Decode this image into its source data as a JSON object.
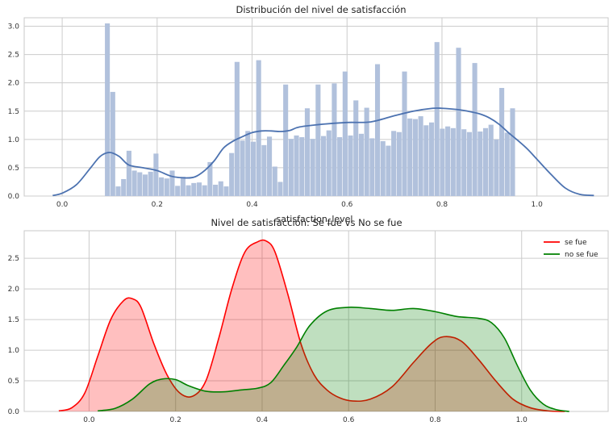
{
  "chart_data": [
    {
      "type": "bar",
      "subtype": "histogram with density curve",
      "title": "Distribución del nivel de satisfacción",
      "xlabel": "satisfaction_level",
      "ylabel": "",
      "xlim": [
        -0.08,
        1.15
      ],
      "ylim": [
        0,
        3.15
      ],
      "xticks": [
        0.0,
        0.2,
        0.4,
        0.6,
        0.8,
        1.0
      ],
      "xtick_labels": [
        "0.0",
        "0.2",
        "0.4",
        "0.6",
        "0.8",
        "1.0"
      ],
      "yticks": [
        0.0,
        0.5,
        1.0,
        1.5,
        2.0,
        2.5,
        3.0
      ],
      "ytick_labels": [
        "0.0",
        "0.5",
        "1.0",
        "1.5",
        "2.0",
        "2.5",
        "3.0"
      ],
      "grid": true,
      "bar_color": "#b1c1dc",
      "line_color": "#4c72b0",
      "bin_start": 0.09,
      "bin_width": 0.01138,
      "values": [
        3.05,
        1.84,
        0.17,
        0.3,
        0.8,
        0.45,
        0.42,
        0.38,
        0.43,
        0.75,
        0.33,
        0.31,
        0.45,
        0.18,
        0.34,
        0.19,
        0.23,
        0.24,
        0.19,
        0.6,
        0.2,
        0.26,
        0.17,
        0.76,
        2.37,
        0.98,
        1.15,
        0.96,
        2.4,
        0.9,
        1.05,
        0.52,
        0.25,
        1.97,
        1.01,
        1.07,
        1.04,
        1.55,
        1.01,
        1.97,
        1.06,
        1.16,
        1.99,
        1.04,
        2.2,
        1.07,
        1.69,
        1.1,
        1.56,
        1.02,
        2.33,
        0.97,
        0.89,
        1.15,
        1.13,
        2.2,
        1.37,
        1.36,
        1.41,
        1.25,
        1.3,
        2.72,
        1.19,
        1.23,
        1.2,
        2.62,
        1.18,
        1.13,
        2.35,
        1.14,
        1.2,
        1.26,
        1.0,
        1.91,
        1.12,
        1.55
      ],
      "density": {
        "x": [
          -0.02,
          0.0,
          0.03,
          0.06,
          0.08,
          0.1,
          0.12,
          0.14,
          0.17,
          0.2,
          0.23,
          0.26,
          0.28,
          0.3,
          0.32,
          0.34,
          0.36,
          0.38,
          0.4,
          0.42,
          0.44,
          0.46,
          0.48,
          0.5,
          0.55,
          0.6,
          0.65,
          0.7,
          0.74,
          0.78,
          0.8,
          0.83,
          0.86,
          0.88,
          0.9,
          0.92,
          0.94,
          0.96,
          0.98,
          1.0,
          1.03,
          1.06,
          1.09,
          1.12
        ],
        "y": [
          0.01,
          0.05,
          0.2,
          0.5,
          0.7,
          0.77,
          0.7,
          0.55,
          0.5,
          0.45,
          0.35,
          0.32,
          0.34,
          0.45,
          0.62,
          0.85,
          0.97,
          1.05,
          1.12,
          1.15,
          1.15,
          1.14,
          1.16,
          1.22,
          1.27,
          1.3,
          1.31,
          1.42,
          1.5,
          1.55,
          1.55,
          1.53,
          1.49,
          1.45,
          1.38,
          1.27,
          1.12,
          0.98,
          0.83,
          0.65,
          0.38,
          0.14,
          0.03,
          0.01
        ]
      }
    },
    {
      "type": "area",
      "subtype": "kde",
      "title": "Nivel de satisfacción: Se fue vs No se fue",
      "xlabel": "",
      "ylabel": "",
      "xlim": [
        -0.15,
        1.2
      ],
      "ylim": [
        0,
        2.95
      ],
      "xticks": [
        0.0,
        0.2,
        0.4,
        0.6,
        0.8,
        1.0
      ],
      "xtick_labels": [
        "0.0",
        "0.2",
        "0.4",
        "0.6",
        "0.8",
        "1.0"
      ],
      "yticks": [
        0.0,
        0.5,
        1.0,
        1.5,
        2.0,
        2.5
      ],
      "ytick_labels": [
        "0.0",
        "0.5",
        "1.0",
        "1.5",
        "2.0",
        "2.5"
      ],
      "grid": true,
      "legend_position": "top-right",
      "series": [
        {
          "name": "se fue",
          "color": "#ff0000",
          "fill": "#ff0000",
          "x": [
            -0.07,
            -0.04,
            -0.01,
            0.02,
            0.05,
            0.08,
            0.1,
            0.12,
            0.15,
            0.18,
            0.21,
            0.24,
            0.27,
            0.3,
            0.33,
            0.36,
            0.39,
            0.41,
            0.43,
            0.46,
            0.49,
            0.52,
            0.55,
            0.58,
            0.61,
            0.65,
            0.7,
            0.75,
            0.79,
            0.82,
            0.86,
            0.9,
            0.94,
            0.98,
            1.02,
            1.06,
            1.1
          ],
          "y": [
            0.01,
            0.06,
            0.3,
            0.9,
            1.5,
            1.81,
            1.84,
            1.7,
            1.1,
            0.6,
            0.3,
            0.25,
            0.5,
            1.2,
            2.0,
            2.6,
            2.77,
            2.78,
            2.6,
            1.9,
            1.1,
            0.6,
            0.35,
            0.22,
            0.17,
            0.2,
            0.4,
            0.8,
            1.1,
            1.22,
            1.15,
            0.85,
            0.5,
            0.2,
            0.06,
            0.01,
            0.0
          ]
        },
        {
          "name": "no se fue",
          "color": "#008000",
          "fill": "#008000",
          "x": [
            0.02,
            0.06,
            0.1,
            0.14,
            0.17,
            0.2,
            0.23,
            0.27,
            0.31,
            0.35,
            0.39,
            0.42,
            0.45,
            0.48,
            0.51,
            0.55,
            0.6,
            0.65,
            0.7,
            0.75,
            0.8,
            0.85,
            0.9,
            0.93,
            0.96,
            0.99,
            1.02,
            1.05,
            1.08,
            1.11
          ],
          "y": [
            0.01,
            0.05,
            0.2,
            0.45,
            0.53,
            0.52,
            0.42,
            0.33,
            0.32,
            0.35,
            0.38,
            0.47,
            0.75,
            1.05,
            1.4,
            1.64,
            1.7,
            1.68,
            1.65,
            1.68,
            1.63,
            1.55,
            1.52,
            1.45,
            1.2,
            0.75,
            0.35,
            0.12,
            0.03,
            0.0
          ]
        }
      ]
    }
  ]
}
